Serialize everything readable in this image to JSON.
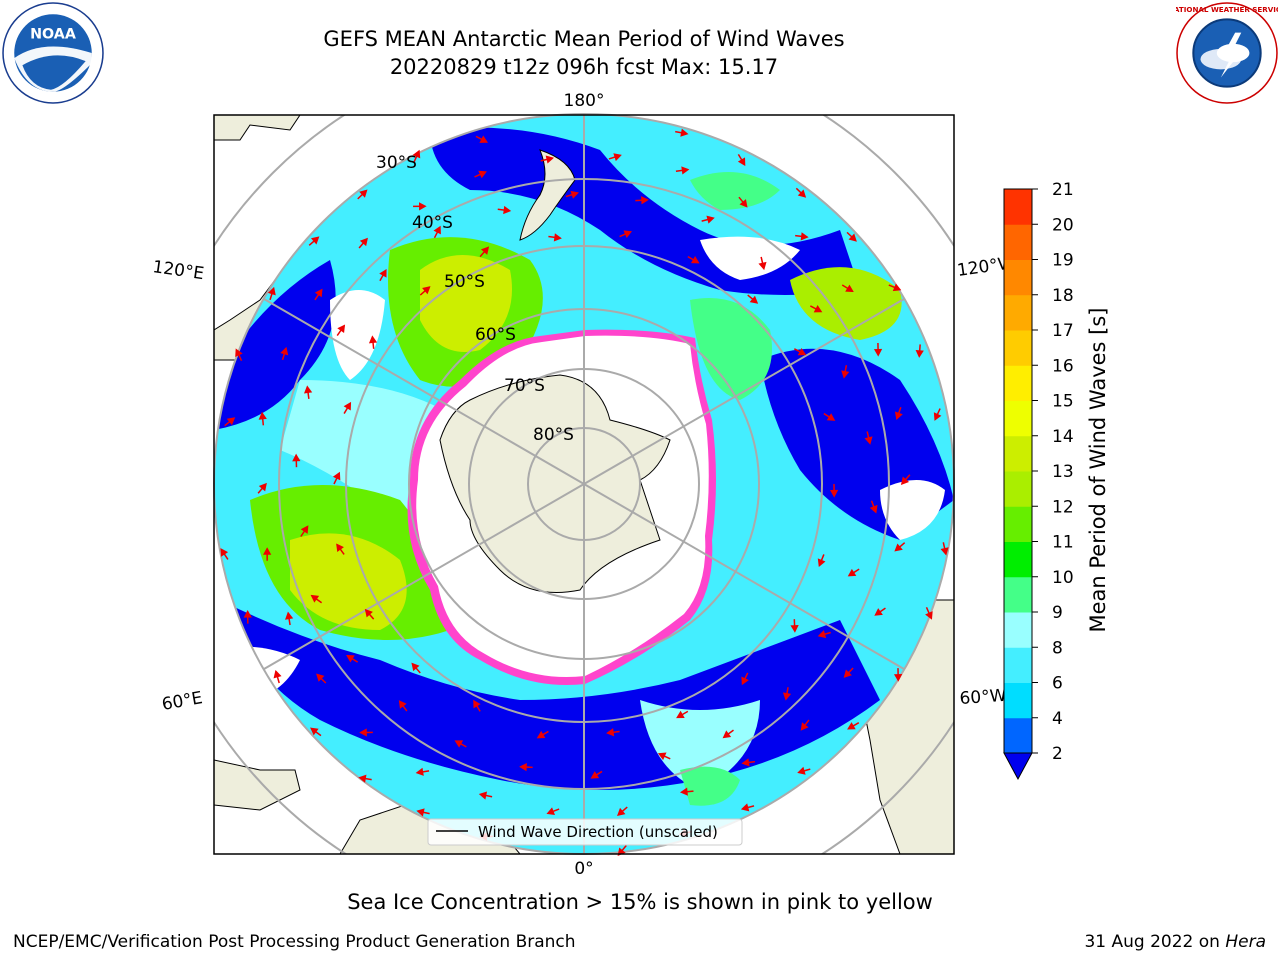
{
  "header": {
    "title_line1": "GEFS MEAN Antarctic Mean Period of Wind Waves",
    "title_line2": "20220829 t12z 096h fcst   Max: 15.17"
  },
  "logos": {
    "left": {
      "icon": "noaa-logo",
      "text": "NOAA"
    },
    "right": {
      "icon": "nws-logo",
      "text": "NATIONAL WEATHER SERVICE"
    }
  },
  "map": {
    "projection": "south-polar-stereographic",
    "longitude_labels": {
      "top": "180°",
      "bottom": "0°",
      "left_upper": "120°E",
      "left_lower": "60°E",
      "right_upper": "120°W",
      "right_lower": "60°W"
    },
    "latitude_labels": [
      "30°S",
      "40°S",
      "50°S",
      "60°S",
      "70°S",
      "80°S"
    ],
    "arrow_color": "#ee0000",
    "land_color": "#eeeedc",
    "sea_ice_color": "#ff44cc",
    "legend": "Wind Wave Direction (unscaled)"
  },
  "colorbar": {
    "label": "Mean Period of Wind Waves [s]",
    "ticks": [
      "2",
      "4",
      "6",
      "8",
      "9",
      "10",
      "11",
      "12",
      "13",
      "14",
      "15",
      "16",
      "17",
      "18",
      "19",
      "20",
      "21"
    ],
    "colors": [
      "#0066ff",
      "#00ddff",
      "#44eeff",
      "#99ffff",
      "#44ff88",
      "#00ee00",
      "#66ee00",
      "#aaee00",
      "#ccee00",
      "#eeff00",
      "#ffee00",
      "#ffcc00",
      "#ffaa00",
      "#ff8800",
      "#ff6600",
      "#ff3300",
      "#ff0000"
    ],
    "extend_color": "#0000ee"
  },
  "subtitle": "Sea Ice Concentration > 15% is shown in pink to yellow",
  "footer": {
    "left": "NCEP/EMC/Verification Post Processing Product Generation Branch",
    "right_date": "31 Aug 2022 on",
    "right_host": "Hera"
  }
}
